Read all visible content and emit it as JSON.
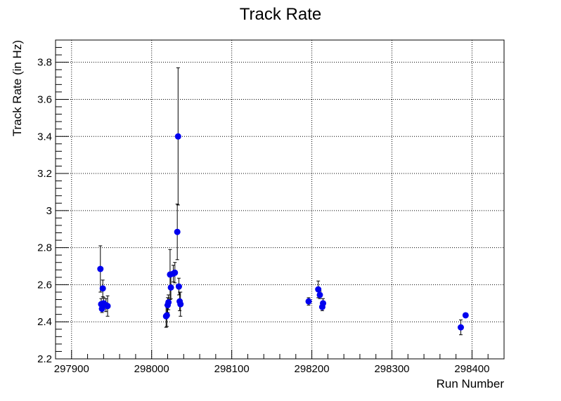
{
  "chart_data": {
    "type": "scatter",
    "title": "Track Rate",
    "xlabel": "Run Number",
    "ylabel": "Track Rate (in Hz)",
    "xlim": [
      297880,
      298440
    ],
    "ylim": [
      2.2,
      3.92
    ],
    "xticks": [
      297900,
      298000,
      298100,
      298200,
      298300,
      298400
    ],
    "xtick_labels": [
      "297900",
      "298000",
      "298100",
      "298200",
      "298300",
      "298400"
    ],
    "yticks": [
      2.2,
      2.4,
      2.6,
      2.8,
      3.0,
      3.2,
      3.4,
      3.6,
      3.8
    ],
    "ytick_labels": [
      "2.2",
      "2.4",
      "2.6",
      "2.8",
      "3",
      "3.2",
      "3.4",
      "3.6",
      "3.8"
    ],
    "grid": true,
    "marker_color": "#0000ee",
    "points": [
      {
        "x": 297936,
        "y": 2.685,
        "err": 0.125
      },
      {
        "x": 297937,
        "y": 2.495,
        "err": 0.03
      },
      {
        "x": 297938,
        "y": 2.47,
        "err": 0.02
      },
      {
        "x": 297939,
        "y": 2.58,
        "err": 0.045
      },
      {
        "x": 297940,
        "y": 2.5,
        "err": 0.03
      },
      {
        "x": 297943,
        "y": 2.49,
        "err": 0.035
      },
      {
        "x": 297945,
        "y": 2.485,
        "err": 0.055
      },
      {
        "x": 298018,
        "y": 2.43,
        "err": 0.06
      },
      {
        "x": 298019,
        "y": 2.435,
        "err": 0.06
      },
      {
        "x": 298020,
        "y": 2.49,
        "err": 0.04
      },
      {
        "x": 298021,
        "y": 2.505,
        "err": 0.04
      },
      {
        "x": 298023,
        "y": 2.655,
        "err": 0.135
      },
      {
        "x": 298024,
        "y": 2.585,
        "err": 0.06
      },
      {
        "x": 298027,
        "y": 2.66,
        "err": 0.045
      },
      {
        "x": 298029,
        "y": 2.665,
        "err": 0.055
      },
      {
        "x": 298032,
        "y": 2.885,
        "err": 0.15
      },
      {
        "x": 298033,
        "y": 3.4,
        "err": 0.37
      },
      {
        "x": 298034,
        "y": 2.59,
        "err": 0.045
      },
      {
        "x": 298035,
        "y": 2.51,
        "err": 0.05
      },
      {
        "x": 298036,
        "y": 2.495,
        "err": 0.065
      },
      {
        "x": 298196,
        "y": 2.51,
        "err": 0.02
      },
      {
        "x": 298208,
        "y": 2.575,
        "err": 0.045
      },
      {
        "x": 298210,
        "y": 2.545,
        "err": 0.02
      },
      {
        "x": 298213,
        "y": 2.48,
        "err": 0.02
      },
      {
        "x": 298214,
        "y": 2.5,
        "err": 0.025
      },
      {
        "x": 298386,
        "y": 2.37,
        "err": 0.04
      },
      {
        "x": 298392,
        "y": 2.435,
        "err": 0.01
      }
    ]
  }
}
